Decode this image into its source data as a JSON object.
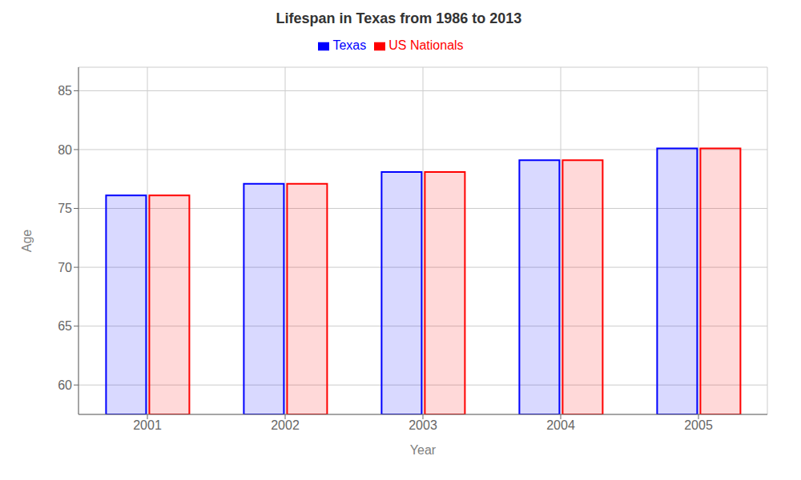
{
  "chart_data": {
    "type": "bar",
    "title": "Lifespan in Texas from 1986 to 2013",
    "xlabel": "Year",
    "ylabel": "Age",
    "categories": [
      "2001",
      "2002",
      "2003",
      "2004",
      "2005"
    ],
    "series": [
      {
        "name": "Texas",
        "color": "#0000ff",
        "values": [
          76.1,
          77.1,
          78.1,
          79.1,
          80.1
        ]
      },
      {
        "name": "US Nationals",
        "color": "#ff0000",
        "values": [
          76.1,
          77.1,
          78.1,
          79.1,
          80.1
        ]
      }
    ],
    "ylim": [
      57.5,
      87
    ],
    "yticks": [
      60,
      65,
      70,
      75,
      80,
      85
    ],
    "grid": true,
    "legend": "top"
  }
}
